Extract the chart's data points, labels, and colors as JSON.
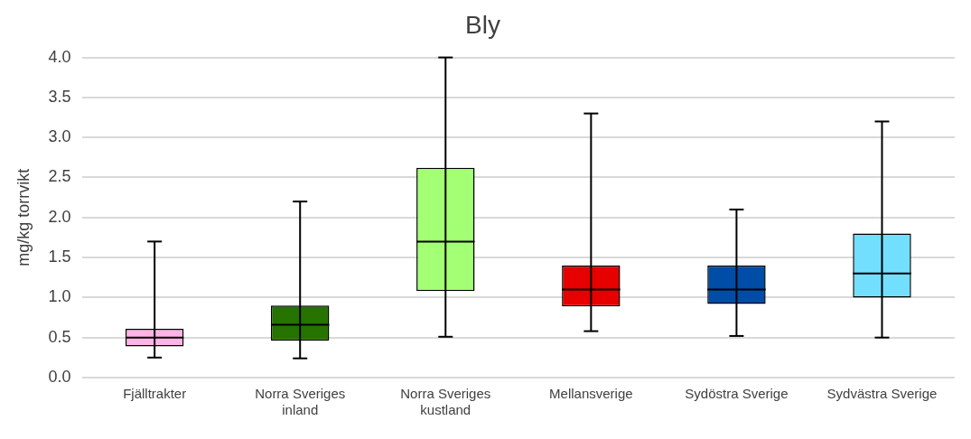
{
  "chart_data": {
    "type": "box",
    "title": "Bly",
    "ylabel": "mg/kg torrvikt",
    "categories": [
      "Fjälltrakter",
      "Norra Sveriges inland",
      "Norra Sveriges kustland",
      "Mellansverige",
      "Sydöstra Sverige",
      "Sydvästra Sverige"
    ],
    "colors": [
      "#ffb3e6",
      "#267300",
      "#a3ff73",
      "#e60000",
      "#004da8",
      "#73dfff"
    ],
    "boxes": [
      {
        "low": 0.25,
        "q1": 0.39,
        "median": 0.5,
        "q3": 0.61,
        "high": 1.7
      },
      {
        "low": 0.24,
        "q1": 0.46,
        "median": 0.66,
        "q3": 0.9,
        "high": 2.2
      },
      {
        "low": 0.51,
        "q1": 1.08,
        "median": 1.7,
        "q3": 2.62,
        "high": 4.0
      },
      {
        "low": 0.58,
        "q1": 0.89,
        "median": 1.1,
        "q3": 1.4,
        "high": 3.3
      },
      {
        "low": 0.52,
        "q1": 0.92,
        "median": 1.1,
        "q3": 1.4,
        "high": 2.1
      },
      {
        "low": 0.5,
        "q1": 1.0,
        "median": 1.3,
        "q3": 1.8,
        "high": 3.2
      }
    ],
    "ylim": [
      0,
      4
    ],
    "yticks": [
      {
        "value": 0,
        "label": "0.0"
      },
      {
        "value": 0.5,
        "label": "0.5"
      },
      {
        "value": 1,
        "label": "1.0"
      },
      {
        "value": 1.5,
        "label": "1.5"
      },
      {
        "value": 2,
        "label": "2.0"
      },
      {
        "value": 2.5,
        "label": "2.5"
      },
      {
        "value": 3,
        "label": "3.0"
      },
      {
        "value": 3.5,
        "label": "3.5"
      },
      {
        "value": 4,
        "label": "4.0"
      }
    ],
    "grid": "y"
  }
}
